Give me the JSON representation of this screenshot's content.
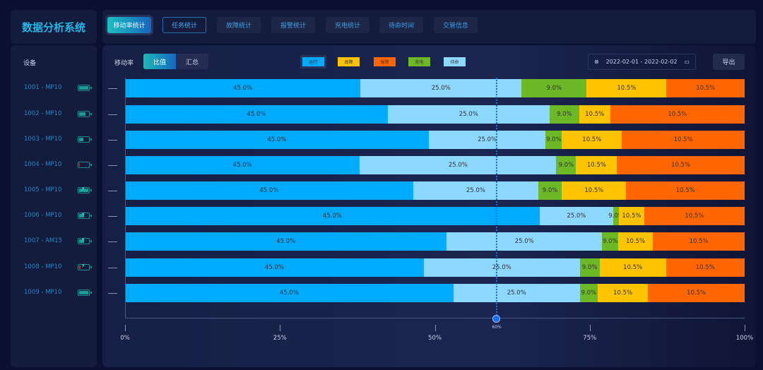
{
  "app_title": "数据分析系统",
  "tabs": [
    {
      "label": "移动率统计",
      "state": "active"
    },
    {
      "label": "任务统计",
      "state": "hover"
    },
    {
      "label": "故障统计"
    },
    {
      "label": "报警统计"
    },
    {
      "label": "充电统计"
    },
    {
      "label": "待命时间"
    },
    {
      "label": "交管信息"
    }
  ],
  "sidebar": {
    "header": "设备",
    "devices": [
      {
        "name": "1001 - MP10",
        "battery": 1.0,
        "charging": false
      },
      {
        "name": "1002 - MP10",
        "battery": 0.7,
        "charging": false
      },
      {
        "name": "1003 - MP10",
        "battery": 0.45,
        "charging": false
      },
      {
        "name": "1004 - MP10",
        "battery": 0.1,
        "charging": false
      },
      {
        "name": "1005 - MP10",
        "battery": 1.0,
        "charging": true
      },
      {
        "name": "1006 - MP10",
        "battery": 0.5,
        "charging": true
      },
      {
        "name": "1007 - AM15",
        "battery": 0.5,
        "charging": true
      },
      {
        "name": "1008 - MP10",
        "battery": 0.15,
        "charging": true
      },
      {
        "name": "1009 - MP10",
        "battery": 1.0,
        "charging": false
      }
    ]
  },
  "toolbar": {
    "metric_label": "移动率",
    "toggle": [
      "比值",
      "汇总"
    ],
    "toggle_selected": 0,
    "date_range": "2022-02-01 - 2022-02-02",
    "export_label": "导出"
  },
  "legend": [
    {
      "label": "运行",
      "color": "#00aaff"
    },
    {
      "label": "故障",
      "color": "#ffc300"
    },
    {
      "label": "报警",
      "color": "#ff6600"
    },
    {
      "label": "充电",
      "color": "#6cb826"
    },
    {
      "label": "待命",
      "color": "#8cd8ff"
    }
  ],
  "chart_data": {
    "type": "bar",
    "orientation": "horizontal",
    "stacked": true,
    "categories": [
      "1001 - MP10",
      "1002 - MP10",
      "1003 - MP10",
      "1004 - MP10",
      "1005 - MP10",
      "1006 - MP10",
      "1007 - AM15",
      "1008 - MP10",
      "1009 - MP10"
    ],
    "segment_order": [
      "运行",
      "待命",
      "充电",
      "故障",
      "报警"
    ],
    "segment_colors": [
      "#00aaff",
      "#8cd8ff",
      "#6cb826",
      "#ffc300",
      "#ff6600"
    ],
    "segment_labels": [
      "45.0%",
      "25.0%",
      "9.0%",
      "10.5%",
      "10.5%"
    ],
    "values": [
      [
        38.0,
        26.0,
        10.5,
        12.9,
        12.6
      ],
      [
        42.4,
        26.1,
        4.8,
        5.0,
        21.7
      ],
      [
        49.0,
        18.9,
        2.6,
        9.7,
        19.8
      ],
      [
        37.9,
        31.7,
        3.2,
        6.6,
        20.6
      ],
      [
        46.5,
        20.2,
        3.8,
        10.4,
        19.1
      ],
      [
        66.9,
        11.9,
        0.9,
        4.1,
        16.2
      ],
      [
        51.9,
        25.1,
        2.6,
        5.6,
        14.8
      ],
      [
        48.2,
        25.2,
        3.2,
        10.7,
        12.7
      ],
      [
        53.0,
        20.4,
        2.9,
        8.1,
        15.6
      ]
    ],
    "xticks": [
      "0%",
      "25%",
      "50%",
      "75%",
      "100%"
    ],
    "xlim": [
      0,
      100
    ],
    "marker": {
      "value": 60,
      "label": "60%"
    }
  }
}
